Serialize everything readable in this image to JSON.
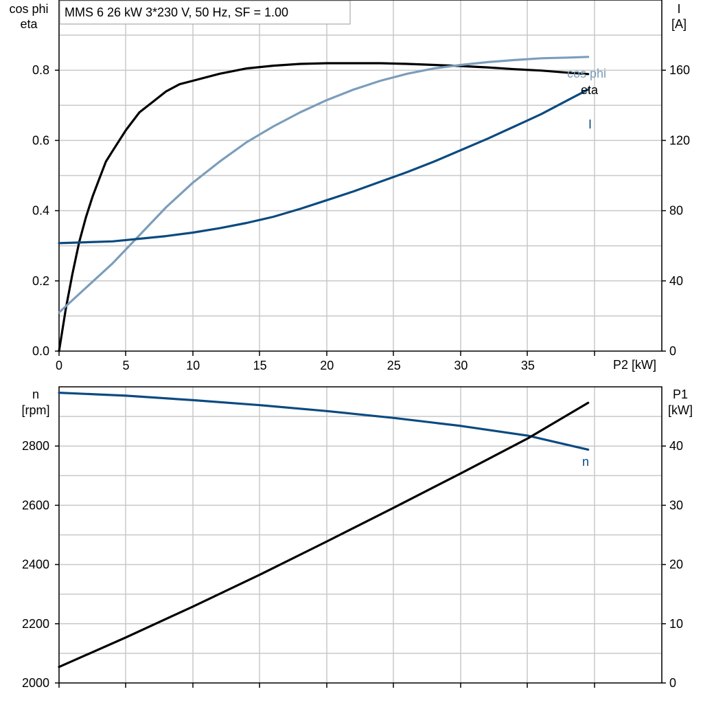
{
  "title_box": {
    "text": "MMS 6   26 kW   3*230 V, 50 Hz, SF = 1.00"
  },
  "colors": {
    "black": "#000000",
    "light_blue": "#7b9dbb",
    "dark_blue": "#0b4a80",
    "grid": "#c8c8c8"
  },
  "chart_data": [
    {
      "type": "line",
      "x_axis": {
        "label": "P2 [kW]",
        "range": [
          0,
          45
        ],
        "ticks": [
          0,
          5,
          10,
          15,
          20,
          25,
          30,
          35
        ],
        "tick_labels": [
          "0",
          "5",
          "10",
          "15",
          "20",
          "25",
          "30",
          "35"
        ]
      },
      "y_axis_left": {
        "label_lines": [
          "cos phi",
          "eta"
        ],
        "range": [
          0,
          1.0
        ],
        "ticks": [
          0.0,
          0.2,
          0.4,
          0.6,
          0.8
        ],
        "tick_labels": [
          "0.0",
          "0.2",
          "0.4",
          "0.6",
          "0.8"
        ]
      },
      "y_axis_right": {
        "label_lines": [
          "I",
          "[A]"
        ],
        "range": [
          0,
          200
        ],
        "ticks": [
          0,
          40,
          80,
          120,
          160
        ],
        "tick_labels": [
          "0",
          "40",
          "80",
          "120",
          "160"
        ]
      },
      "grid": true,
      "series": [
        {
          "name": "eta",
          "axis": "left",
          "color": "#000000",
          "x": [
            0,
            0.5,
            1,
            1.5,
            2,
            2.5,
            3,
            3.5,
            4,
            5,
            6,
            7,
            8,
            9,
            10,
            12,
            14,
            16,
            18,
            20,
            22,
            24,
            26,
            28,
            30,
            32,
            34,
            36,
            38,
            39.5
          ],
          "y": [
            0.0,
            0.12,
            0.22,
            0.31,
            0.38,
            0.44,
            0.49,
            0.54,
            0.57,
            0.63,
            0.68,
            0.71,
            0.74,
            0.76,
            0.77,
            0.79,
            0.805,
            0.813,
            0.818,
            0.82,
            0.82,
            0.82,
            0.818,
            0.815,
            0.812,
            0.808,
            0.803,
            0.799,
            0.793,
            0.789
          ]
        },
        {
          "name": "cos phi",
          "axis": "left",
          "color": "#7b9dbb",
          "x": [
            0,
            2,
            4,
            6,
            8,
            10,
            12,
            14,
            16,
            18,
            20,
            22,
            24,
            26,
            28,
            30,
            32,
            34,
            36,
            38,
            39.5
          ],
          "y": [
            0.11,
            0.18,
            0.25,
            0.33,
            0.41,
            0.48,
            0.54,
            0.595,
            0.64,
            0.68,
            0.715,
            0.745,
            0.77,
            0.79,
            0.805,
            0.815,
            0.823,
            0.829,
            0.834,
            0.836,
            0.838
          ]
        },
        {
          "name": "I",
          "axis": "right",
          "color": "#0b4a80",
          "x": [
            0,
            2,
            4,
            6,
            8,
            10,
            12,
            14,
            16,
            18,
            20,
            22,
            24,
            26,
            28,
            30,
            32,
            34,
            36,
            38,
            39.5
          ],
          "y": [
            61.5,
            62,
            62.5,
            64,
            65.5,
            67.5,
            70,
            73,
            76.5,
            81,
            86,
            91,
            96.5,
            102,
            108,
            114.5,
            121,
            128,
            135,
            143,
            149
          ]
        }
      ]
    },
    {
      "type": "line",
      "x_axis": {
        "range": [
          0,
          45
        ]
      },
      "y_axis_left": {
        "label_lines": [
          "n",
          "[rpm]"
        ],
        "range": [
          2000,
          3000
        ],
        "ticks": [
          2000,
          2200,
          2400,
          2600,
          2800
        ],
        "tick_labels": [
          "2000",
          "2200",
          "2400",
          "2600",
          "2800"
        ]
      },
      "y_axis_right": {
        "label_lines": [
          "P1",
          "[kW]"
        ],
        "range": [
          0,
          50
        ],
        "ticks": [
          0,
          10,
          20,
          30,
          40
        ],
        "tick_labels": [
          "0",
          "10",
          "20",
          "30",
          "40"
        ]
      },
      "grid": true,
      "series": [
        {
          "name": "n",
          "axis": "left",
          "color": "#0b4a80",
          "x": [
            0,
            5,
            10,
            15,
            20,
            25,
            30,
            35,
            39.5
          ],
          "y": [
            2980,
            2970,
            2955,
            2938,
            2918,
            2895,
            2868,
            2835,
            2788
          ]
        },
        {
          "name": "",
          "axis": "right",
          "color": "#000000",
          "x": [
            0,
            5,
            10,
            15,
            20,
            25,
            30,
            35,
            39.5
          ],
          "y": [
            2.7,
            7.7,
            12.9,
            18.3,
            23.9,
            29.6,
            35.4,
            41.3,
            47.3
          ]
        }
      ]
    }
  ]
}
